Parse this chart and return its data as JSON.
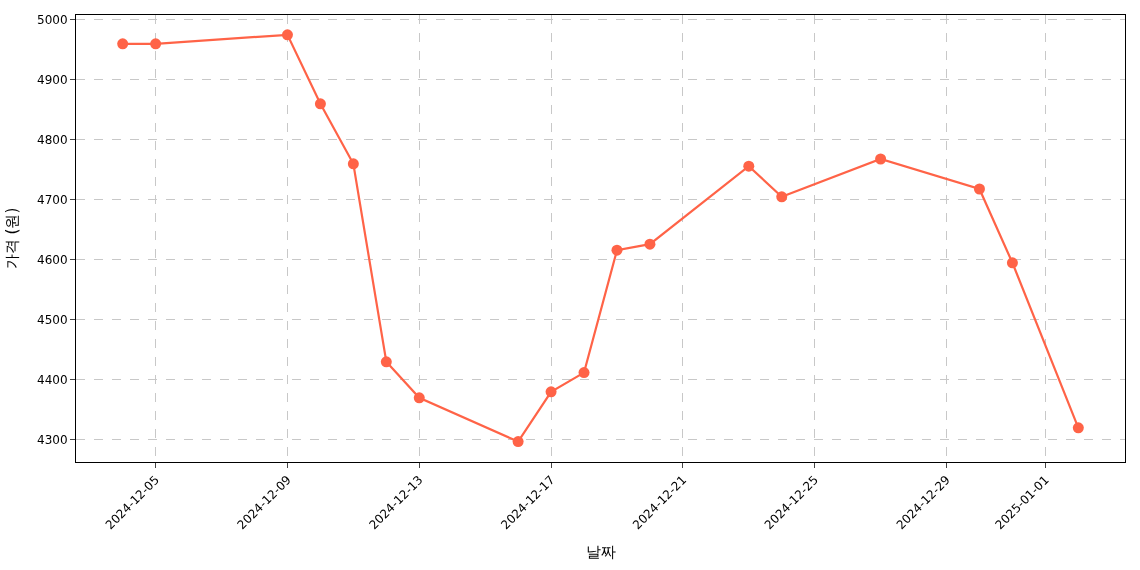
{
  "chart_data": {
    "type": "line",
    "xlabel": "날짜",
    "ylabel": "가격 (원)",
    "x": [
      "2024-12-04",
      "2024-12-05",
      "2024-12-09",
      "2024-12-10",
      "2024-12-11",
      "2024-12-12",
      "2024-12-13",
      "2024-12-16",
      "2024-12-17",
      "2024-12-18",
      "2024-12-19",
      "2024-12-20",
      "2024-12-23",
      "2024-12-24",
      "2024-12-27",
      "2024-12-30",
      "2024-12-31",
      "2025-01-02"
    ],
    "series": [
      {
        "color": "#ff6347",
        "values": [
          4960,
          4960,
          4975,
          4860,
          4760,
          4430,
          4370,
          4297,
          4380,
          4412,
          4616,
          4626,
          4756,
          4705,
          4768,
          4718,
          4595,
          4320
        ]
      }
    ],
    "xlim": [
      "2024-12-02T14:00",
      "2025-01-03T10:00"
    ],
    "xticks": [
      {
        "value": "2024-12-05",
        "label": "2024-12-05"
      },
      {
        "value": "2024-12-09",
        "label": "2024-12-09"
      },
      {
        "value": "2024-12-13",
        "label": "2024-12-13"
      },
      {
        "value": "2024-12-17",
        "label": "2024-12-17"
      },
      {
        "value": "2024-12-21",
        "label": "2024-12-21"
      },
      {
        "value": "2024-12-25",
        "label": "2024-12-25"
      },
      {
        "value": "2024-12-29",
        "label": "2024-12-29"
      },
      {
        "value": "2025-01-01",
        "label": "2025-01-01"
      }
    ],
    "ylim": [
      4263,
      5008
    ],
    "yticks": [
      4300,
      4400,
      4500,
      4600,
      4700,
      4800,
      4900,
      5000
    ],
    "grid": true,
    "marker": "circle",
    "line_style": "solid",
    "legend": false
  }
}
